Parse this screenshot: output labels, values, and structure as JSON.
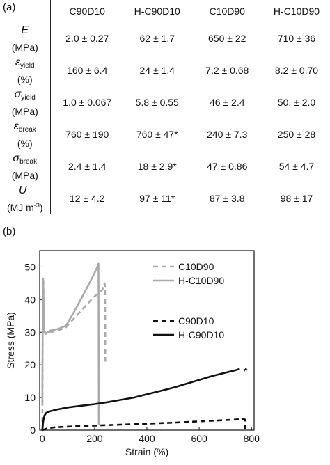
{
  "panel_a_label": "(a)",
  "panel_b_label": "(b)",
  "table": {
    "columns": [
      "C90D10",
      "H-C90D10",
      "C10D90",
      "H-C10D90"
    ],
    "rows": [
      {
        "symbol": "E",
        "sub": "",
        "unit_pre": "(MPa)",
        "unit_sup": "",
        "unit_post": "",
        "values": [
          "2.0 ± 0.27",
          "62 ± 1.7",
          "650 ± 22",
          "710 ± 36"
        ]
      },
      {
        "symbol": "ε",
        "sub": "yield",
        "unit_pre": "(%)",
        "unit_sup": "",
        "unit_post": "",
        "values": [
          "160 ± 6.4",
          "24 ± 1.4",
          "7.2 ± 0.68",
          "8.2 ± 0.70"
        ]
      },
      {
        "symbol": "σ",
        "sub": "yield",
        "unit_pre": "(MPa)",
        "unit_sup": "",
        "unit_post": "",
        "values": [
          "1.0 ± 0.067",
          "5.8 ± 0.55",
          "46 ± 2.4",
          "50. ± 2.0"
        ]
      },
      {
        "symbol": "ε",
        "sub": "break",
        "unit_pre": "(%)",
        "unit_sup": "",
        "unit_post": "",
        "values": [
          "760 ± 190",
          "760 ± 47*",
          "240 ± 7.3",
          "250 ± 28"
        ]
      },
      {
        "symbol": "σ",
        "sub": "break",
        "unit_pre": "(MPa)",
        "unit_sup": "",
        "unit_post": "",
        "values": [
          "2.4 ± 1.4",
          "18 ± 2.9*",
          "47 ± 0.86",
          "54 ± 4.7"
        ]
      },
      {
        "symbol": "U",
        "sub": "T",
        "unit_pre": "(MJ m",
        "unit_sup": "-3",
        "unit_post": ")",
        "values": [
          "12 ± 4.2",
          "97 ± 11*",
          "87 ± 3.8",
          "98 ± 17"
        ]
      }
    ]
  },
  "chart_data": {
    "type": "line",
    "xlabel": "Strain (%)",
    "ylabel": "Stress (MPa)",
    "xlim": [
      -10,
      810
    ],
    "ylim": [
      0,
      55
    ],
    "xticks": [
      0,
      200,
      400,
      600,
      800
    ],
    "yticks": [
      0,
      10,
      20,
      30,
      40,
      50
    ],
    "grid": false,
    "legend_position": "upper-right",
    "annotation": "*",
    "colors": {
      "gray": "#aaaaaa",
      "black": "#111111"
    },
    "series": [
      {
        "name": "C10D90",
        "color": "#aaaaaa",
        "dash": "dashed",
        "points": [
          [
            0,
            0
          ],
          [
            1,
            20
          ],
          [
            2,
            38
          ],
          [
            3,
            45
          ],
          [
            4,
            46
          ],
          [
            5,
            40
          ],
          [
            6,
            33
          ],
          [
            8,
            30
          ],
          [
            12,
            29.5
          ],
          [
            30,
            30
          ],
          [
            60,
            30.5
          ],
          [
            90,
            31.5
          ],
          [
            130,
            35
          ],
          [
            170,
            38.5
          ],
          [
            200,
            41
          ],
          [
            230,
            43
          ],
          [
            238,
            45
          ],
          [
            240,
            44
          ],
          [
            241,
            21
          ]
        ]
      },
      {
        "name": "H-C10D90",
        "color": "#aaaaaa",
        "dash": "solid",
        "points": [
          [
            0,
            7.5
          ],
          [
            1,
            25
          ],
          [
            2,
            40
          ],
          [
            3,
            46.5
          ],
          [
            4,
            43
          ],
          [
            6,
            35
          ],
          [
            8,
            30.5
          ],
          [
            12,
            29.5
          ],
          [
            30,
            30.5
          ],
          [
            60,
            31
          ],
          [
            90,
            32
          ],
          [
            120,
            36
          ],
          [
            150,
            40.5
          ],
          [
            180,
            45
          ],
          [
            205,
            49
          ],
          [
            215,
            51
          ],
          [
            216,
            2
          ],
          [
            217,
            1.5
          ]
        ]
      },
      {
        "name": "C90D10",
        "color": "#111111",
        "dash": "dashed",
        "points": [
          [
            0,
            0
          ],
          [
            20,
            0.6
          ],
          [
            50,
            0.9
          ],
          [
            100,
            1.1
          ],
          [
            200,
            1.4
          ],
          [
            300,
            1.7
          ],
          [
            400,
            2.0
          ],
          [
            500,
            2.3
          ],
          [
            600,
            2.7
          ],
          [
            700,
            3.1
          ],
          [
            760,
            3.4
          ],
          [
            775,
            3.3
          ],
          [
            776,
            0.3
          ]
        ]
      },
      {
        "name": "H-C90D10",
        "color": "#111111",
        "dash": "solid",
        "points": [
          [
            0,
            0
          ],
          [
            3,
            2.5
          ],
          [
            8,
            4.5
          ],
          [
            15,
            5.3
          ],
          [
            30,
            5.8
          ],
          [
            60,
            6.4
          ],
          [
            100,
            7.0
          ],
          [
            150,
            7.5
          ],
          [
            200,
            8.0
          ],
          [
            250,
            8.6
          ],
          [
            300,
            9.3
          ],
          [
            350,
            10.0
          ],
          [
            400,
            11.0
          ],
          [
            450,
            12.0
          ],
          [
            500,
            13.0
          ],
          [
            550,
            14.2
          ],
          [
            600,
            15.4
          ],
          [
            650,
            16.6
          ],
          [
            700,
            17.6
          ],
          [
            740,
            18.4
          ],
          [
            755,
            18.8
          ]
        ]
      }
    ]
  }
}
